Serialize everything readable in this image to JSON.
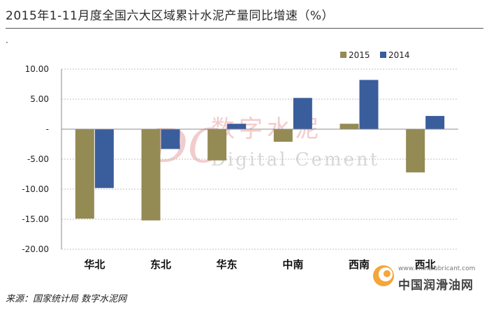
{
  "header": {
    "title": "2015年1-11月度全国六大区域累计水泥产量同比增速（%）",
    "bullet": "·"
  },
  "source": "来源：国家统计局  数字水泥网",
  "watermark": {
    "cn": "数字水泥",
    "en": "Digital Cement",
    "logo": "DC",
    "site_url": "www.chinalubricant.com",
    "site_name": "中国润滑油网"
  },
  "colors": {
    "s2015": "#948a54",
    "s2014": "#3a5d9c",
    "grid": "#bfbfbf",
    "axis": "#8c8c8c",
    "watermark_red": "#e8a3a3",
    "watermark_gray": "#bdbdbd"
  },
  "chart_data": {
    "type": "bar",
    "title": "2015年1-11月度全国六大区域累计水泥产量同比增速（%）",
    "categories": [
      "华北",
      "东北",
      "华东",
      "中南",
      "西南",
      "西北"
    ],
    "series": [
      {
        "name": "2015",
        "values": [
          -14.9,
          -15.2,
          -5.2,
          -2.1,
          0.9,
          -7.2
        ]
      },
      {
        "name": "2014",
        "values": [
          -9.8,
          -3.3,
          0.9,
          5.2,
          8.2,
          2.2
        ]
      }
    ],
    "ylim": [
      -20,
      10
    ],
    "yticks": [
      10,
      5,
      0,
      -5,
      -10,
      -15,
      -20
    ],
    "ytick_labels": [
      "10.00",
      "5.00",
      "-",
      "-5.00",
      "-10.00",
      "-15.00",
      "-20.00"
    ],
    "xlabel": "",
    "ylabel": "",
    "grid": true,
    "legend_position": "top-right"
  }
}
